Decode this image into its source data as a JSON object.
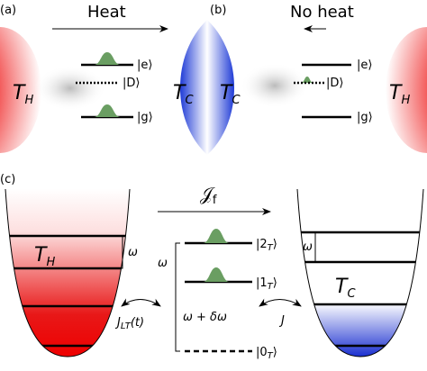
{
  "panel_a": {
    "label": "(a)",
    "arrow_label": "Heat",
    "bath": {
      "main": "T",
      "sub": "H"
    },
    "levels": {
      "e": "|e⟩",
      "D": "|D⟩",
      "g": "|g⟩"
    }
  },
  "cold_bath": {
    "left": {
      "main": "T",
      "sub": "C"
    },
    "right": {
      "main": "T",
      "sub": "C"
    }
  },
  "panel_b": {
    "label": "(b)",
    "arrow_label": "No heat",
    "bath": {
      "main": "T",
      "sub": "H"
    },
    "levels": {
      "e": "|e⟩",
      "D": "|D⟩",
      "g": "|g⟩"
    }
  },
  "panel_c": {
    "label": "(c)",
    "current": {
      "main": "𝒥",
      "sub": "f"
    },
    "hot_well": {
      "main": "T",
      "sub": "H"
    },
    "cold_well": {
      "main": "T",
      "sub": "C"
    },
    "omega_hot": "ω",
    "omega_big": "ω",
    "omega_cold": "ω",
    "levels": [
      {
        "pre": "|2",
        "sub": "T",
        "post": "⟩"
      },
      {
        "pre": "|1",
        "sub": "T",
        "post": "⟩"
      },
      {
        "pre": "|0",
        "sub": "T",
        "post": "⟩"
      }
    ],
    "gap": "ω + δω",
    "coupling_left": {
      "main": "J",
      "sub": "LT",
      "post": "(t)"
    },
    "coupling_right": "J"
  }
}
